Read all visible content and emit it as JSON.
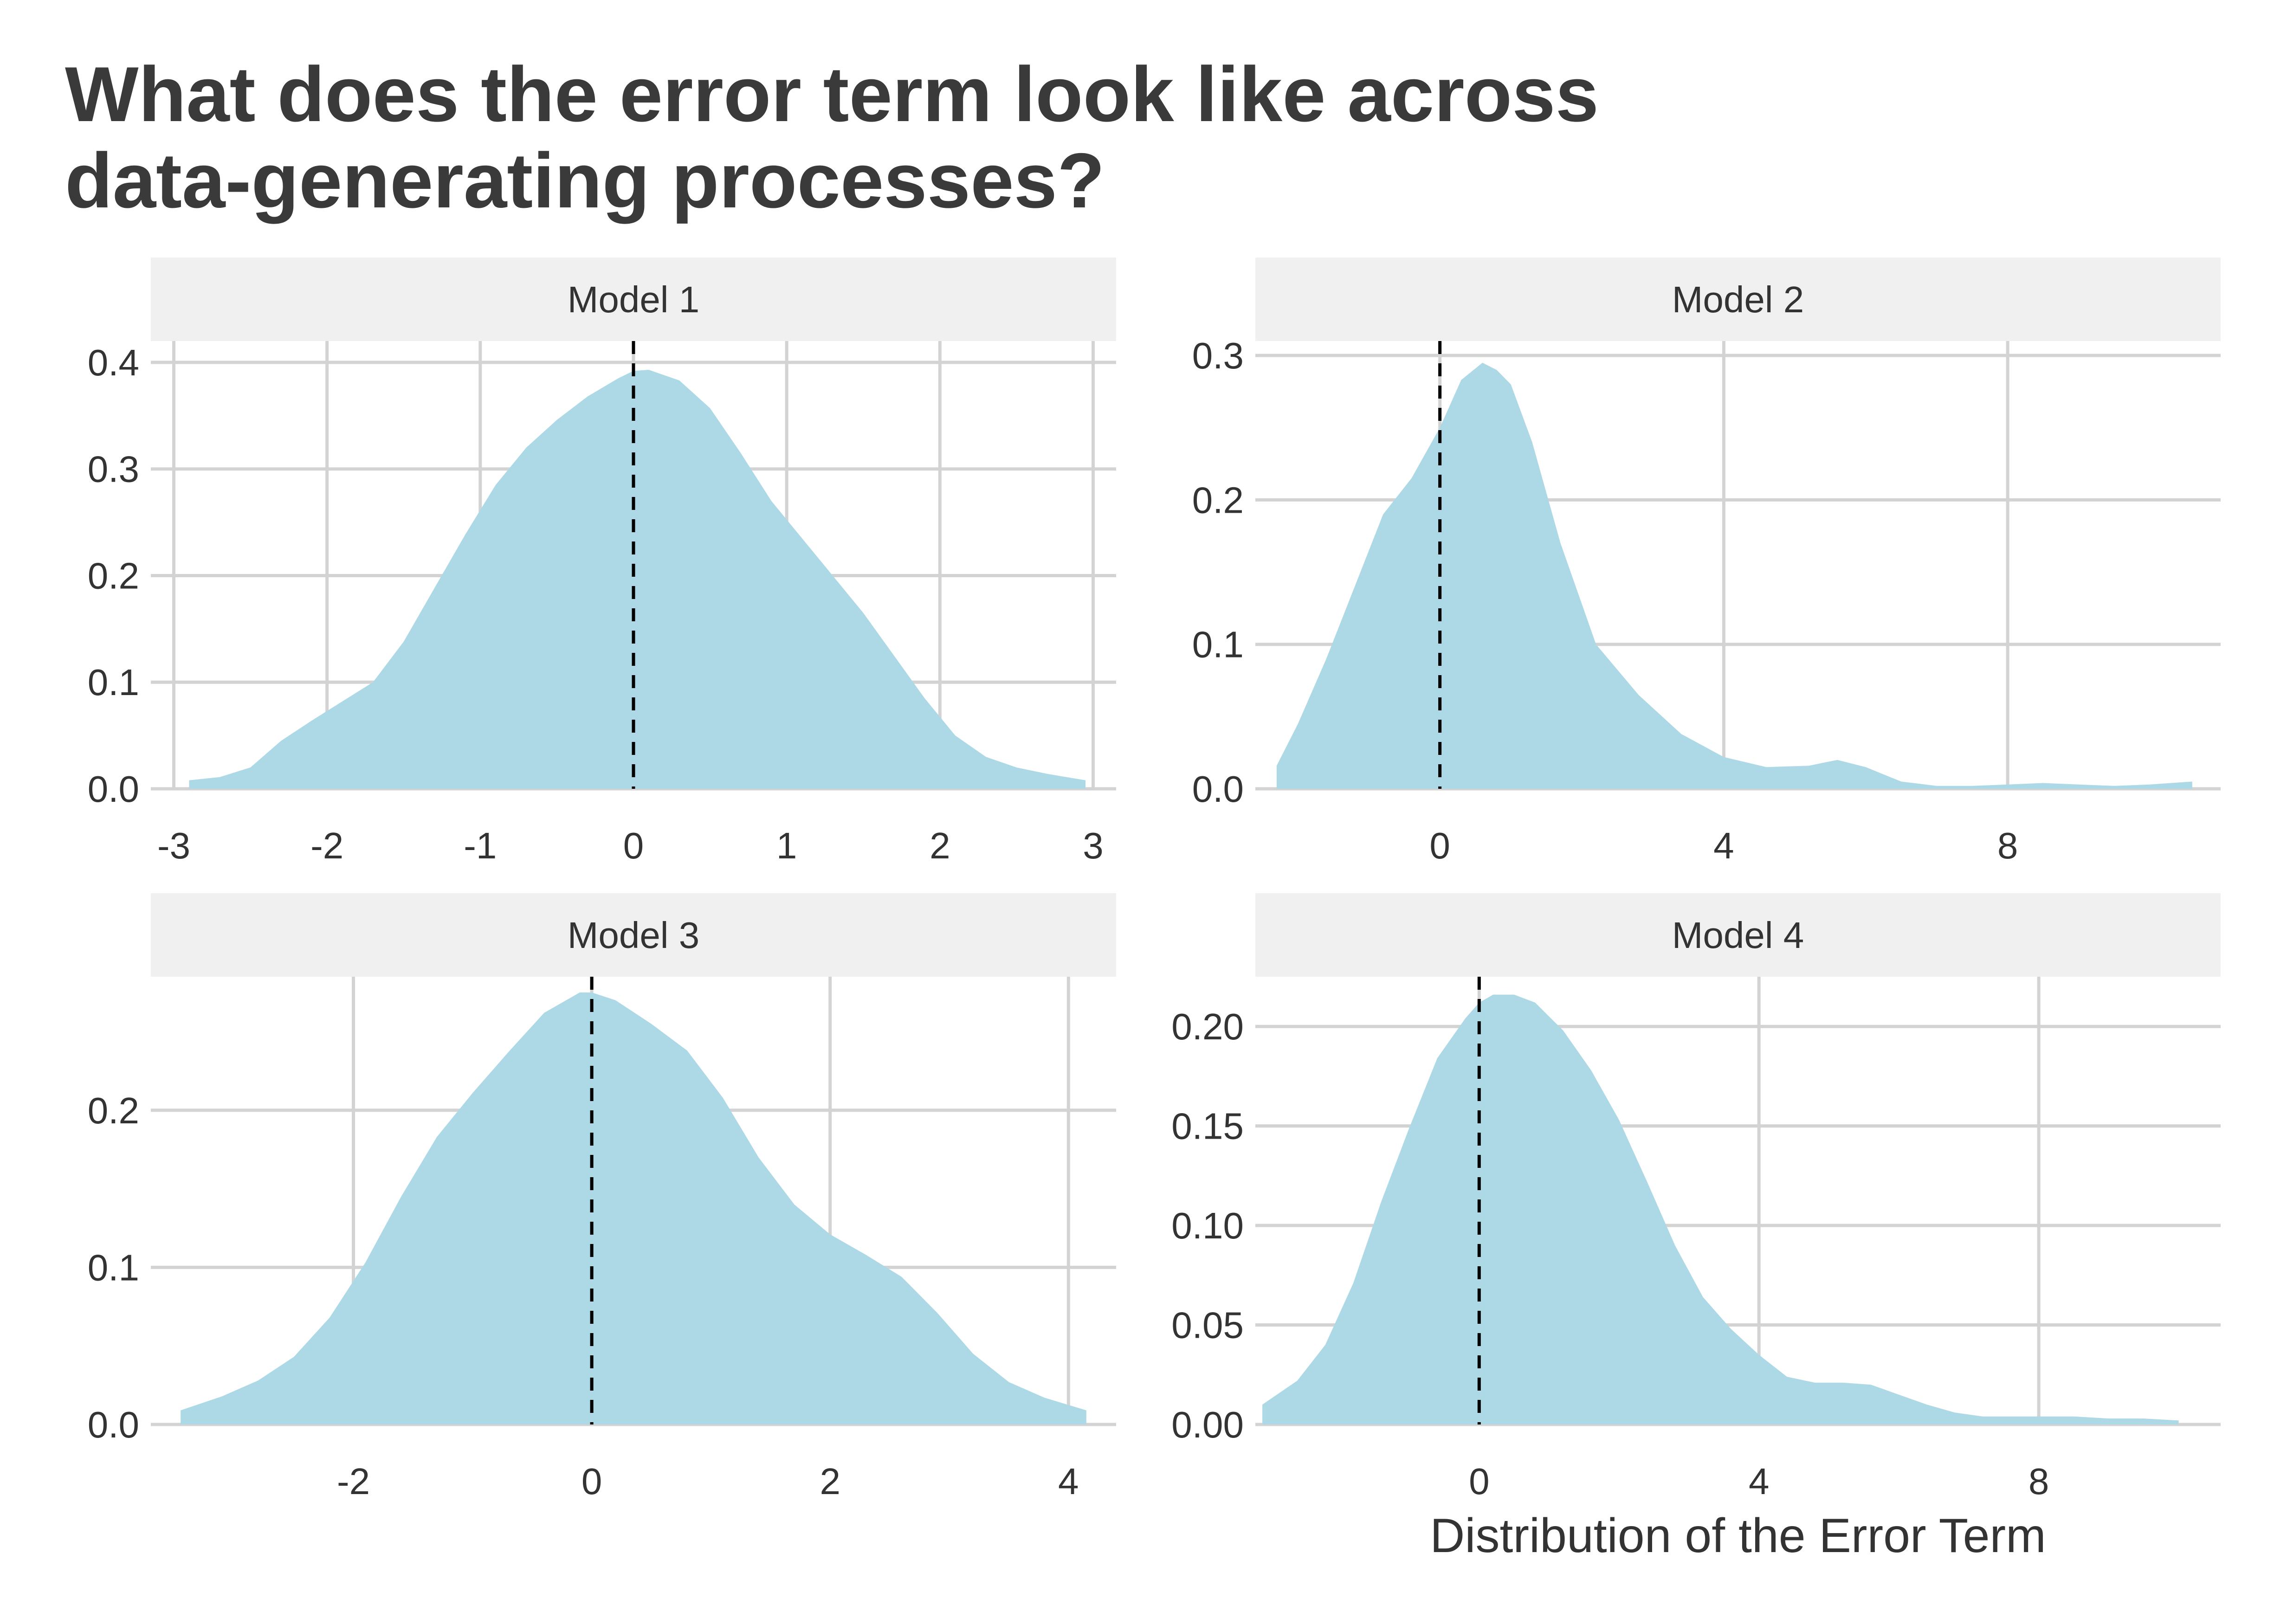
{
  "title_lines": [
    "What does the error term look like across",
    "data-generating processes?"
  ],
  "chart_data": {
    "type": "area",
    "title": "What does the error term look like across data-generating processes?",
    "xlabel": "Distribution of the Error Term",
    "ylabel": "",
    "grid": true,
    "legend": "none",
    "fill_color": "#ADD8E6",
    "reference_line": {
      "x": 0,
      "style": "dashed",
      "color": "#000000"
    },
    "panels": [
      {
        "name": "Model 1",
        "xlim": [
          -3.15,
          3.15
        ],
        "ylim": [
          0,
          0.42
        ],
        "xticks": [
          -3,
          -2,
          -1,
          0,
          1,
          2,
          3
        ],
        "xtick_labels": [
          "-3",
          "-2",
          "-1",
          "0",
          "1",
          "2",
          "3"
        ],
        "yticks": [
          0.0,
          0.1,
          0.2,
          0.3,
          0.4
        ],
        "ytick_labels": [
          "0.0",
          "0.1",
          "0.2",
          "0.3",
          "0.4"
        ],
        "x": [
          -2.9,
          -2.7,
          -2.5,
          -2.3,
          -2.1,
          -1.9,
          -1.7,
          -1.5,
          -1.3,
          -1.1,
          -0.9,
          -0.7,
          -0.5,
          -0.3,
          -0.1,
          0.0,
          0.1,
          0.3,
          0.5,
          0.7,
          0.9,
          1.1,
          1.3,
          1.5,
          1.7,
          1.9,
          2.1,
          2.3,
          2.5,
          2.7,
          2.95
        ],
        "y": [
          0.008,
          0.011,
          0.02,
          0.045,
          0.064,
          0.082,
          0.1,
          0.138,
          0.188,
          0.238,
          0.285,
          0.32,
          0.346,
          0.368,
          0.385,
          0.392,
          0.393,
          0.383,
          0.357,
          0.315,
          0.27,
          0.235,
          0.2,
          0.165,
          0.125,
          0.085,
          0.05,
          0.03,
          0.02,
          0.014,
          0.008
        ]
      },
      {
        "name": "Model 2",
        "xlim": [
          -2.6,
          11.0
        ],
        "ylim": [
          0,
          0.31
        ],
        "xticks": [
          0,
          4,
          8
        ],
        "xtick_labels": [
          "0",
          "4",
          "8"
        ],
        "yticks": [
          0.0,
          0.1,
          0.2,
          0.3
        ],
        "ytick_labels": [
          "0.0",
          "0.1",
          "0.2",
          "0.3"
        ],
        "x": [
          -2.3,
          -2.0,
          -1.6,
          -1.2,
          -0.8,
          -0.4,
          0.0,
          0.3,
          0.6,
          0.8,
          1.0,
          1.3,
          1.7,
          2.2,
          2.8,
          3.4,
          4.0,
          4.6,
          5.2,
          5.6,
          6.0,
          6.5,
          7.0,
          7.5,
          8.0,
          8.5,
          9.0,
          9.5,
          10.0,
          10.6
        ],
        "y": [
          0.016,
          0.045,
          0.09,
          0.14,
          0.19,
          0.215,
          0.25,
          0.283,
          0.295,
          0.29,
          0.28,
          0.24,
          0.17,
          0.1,
          0.065,
          0.038,
          0.022,
          0.015,
          0.016,
          0.02,
          0.015,
          0.005,
          0.002,
          0.002,
          0.003,
          0.004,
          0.003,
          0.002,
          0.003,
          0.005
        ]
      },
      {
        "name": "Model 3",
        "xlim": [
          -3.7,
          4.4
        ],
        "ylim": [
          0,
          0.285
        ],
        "xticks": [
          -2,
          0,
          2,
          4
        ],
        "xtick_labels": [
          "-2",
          "0",
          "2",
          "4"
        ],
        "yticks": [
          0.0,
          0.1,
          0.2
        ],
        "ytick_labels": [
          "0.0",
          "0.1",
          "0.2"
        ],
        "x": [
          -3.45,
          -3.1,
          -2.8,
          -2.5,
          -2.2,
          -1.9,
          -1.6,
          -1.3,
          -1.0,
          -0.7,
          -0.4,
          -0.1,
          0.0,
          0.2,
          0.5,
          0.8,
          1.1,
          1.4,
          1.7,
          2.0,
          2.3,
          2.6,
          2.9,
          3.2,
          3.5,
          3.8,
          4.15
        ],
        "y": [
          0.009,
          0.018,
          0.028,
          0.043,
          0.068,
          0.103,
          0.145,
          0.183,
          0.211,
          0.237,
          0.262,
          0.275,
          0.275,
          0.27,
          0.255,
          0.238,
          0.208,
          0.17,
          0.14,
          0.121,
          0.108,
          0.094,
          0.071,
          0.045,
          0.027,
          0.017,
          0.009
        ]
      },
      {
        "name": "Model 4",
        "xlim": [
          -3.2,
          10.6
        ],
        "ylim": [
          0,
          0.225
        ],
        "xticks": [
          0,
          4,
          8
        ],
        "xtick_labels": [
          "0",
          "4",
          "8"
        ],
        "yticks": [
          0.0,
          0.05,
          0.1,
          0.15,
          0.2
        ],
        "ytick_labels": [
          "0.00",
          "0.05",
          "0.10",
          "0.15",
          "0.20"
        ],
        "x": [
          -3.1,
          -2.6,
          -2.2,
          -1.8,
          -1.4,
          -1.0,
          -0.6,
          -0.2,
          0.0,
          0.2,
          0.5,
          0.8,
          1.2,
          1.6,
          2.0,
          2.4,
          2.8,
          3.2,
          3.6,
          4.0,
          4.4,
          4.8,
          5.2,
          5.6,
          6.0,
          6.4,
          6.8,
          7.2,
          7.6,
          8.0,
          8.5,
          9.0,
          9.5,
          10.0
        ],
        "y": [
          0.01,
          0.022,
          0.04,
          0.071,
          0.112,
          0.149,
          0.184,
          0.204,
          0.212,
          0.216,
          0.216,
          0.212,
          0.198,
          0.178,
          0.153,
          0.122,
          0.09,
          0.064,
          0.048,
          0.035,
          0.024,
          0.021,
          0.021,
          0.02,
          0.015,
          0.01,
          0.006,
          0.004,
          0.004,
          0.004,
          0.004,
          0.003,
          0.003,
          0.002
        ]
      }
    ]
  }
}
